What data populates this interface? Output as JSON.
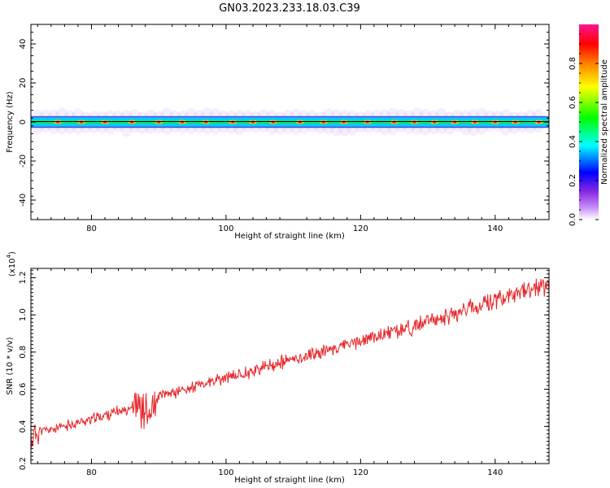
{
  "title": "GN03.2023.233.18.03.C39",
  "colors": {
    "spectrogram_line": "#000000",
    "snr_line": "#e8262a",
    "colormap": [
      "#ffffff",
      "#a020f0",
      "#0000ff",
      "#00ffff",
      "#00ff00",
      "#ffff00",
      "#ff8000",
      "#ff0000",
      "#ff1493"
    ]
  },
  "chart_data": [
    {
      "type": "heatmap",
      "name": "spectrogram",
      "xlabel": "Height of straight line (km)",
      "ylabel": "Frequency (Hz)",
      "xlim": [
        71,
        148
      ],
      "ylim": [
        -50,
        50
      ],
      "xticks": [
        80,
        100,
        120,
        140
      ],
      "yticks": [
        -40,
        -20,
        0,
        20,
        40
      ],
      "band_hz": [
        -3,
        3
      ],
      "center_frequency_hz": 0,
      "hotspots_km": [
        75,
        78.5,
        82,
        86,
        90,
        93.5,
        97,
        101,
        104,
        107,
        111,
        114.5,
        117.5,
        121,
        125,
        128,
        131,
        134,
        137,
        140,
        143,
        146.5
      ],
      "colorbar": {
        "label": "Normalized spectral amplitude",
        "ticks": [
          0.0,
          0.2,
          0.4,
          0.6,
          0.8
        ],
        "range": [
          0,
          1
        ]
      }
    },
    {
      "type": "line",
      "name": "snr",
      "xlabel": "Height of straight line (km)",
      "ylabel": "SNR (10 * v/v)",
      "scale_label": "(x10",
      "scale_exp": "4",
      "scale_close": ")",
      "xlim": [
        71,
        148
      ],
      "ylim": [
        0.2,
        1.25
      ],
      "xticks": [
        80,
        100,
        120,
        140
      ],
      "yticks": [
        0.2,
        0.4,
        0.6,
        0.8,
        1.0,
        1.2
      ],
      "ytick_labels": [
        "0.2",
        "0.4",
        "0.6",
        "0.8",
        "1.0",
        "1.2"
      ],
      "trend": [
        {
          "x": 71,
          "y": 0.33
        },
        {
          "x": 72,
          "y": 0.37
        },
        {
          "x": 75,
          "y": 0.39
        },
        {
          "x": 80,
          "y": 0.44
        },
        {
          "x": 85,
          "y": 0.49
        },
        {
          "x": 86.5,
          "y": 0.52
        },
        {
          "x": 87.5,
          "y": 0.5
        },
        {
          "x": 88,
          "y": 0.47
        },
        {
          "x": 89,
          "y": 0.47
        },
        {
          "x": 90,
          "y": 0.56
        },
        {
          "x": 95,
          "y": 0.61
        },
        {
          "x": 100,
          "y": 0.66
        },
        {
          "x": 110,
          "y": 0.76
        },
        {
          "x": 120,
          "y": 0.86
        },
        {
          "x": 130,
          "y": 0.96
        },
        {
          "x": 140,
          "y": 1.08
        },
        {
          "x": 148,
          "y": 1.16
        }
      ],
      "noise_amplitude": 0.02
    }
  ]
}
